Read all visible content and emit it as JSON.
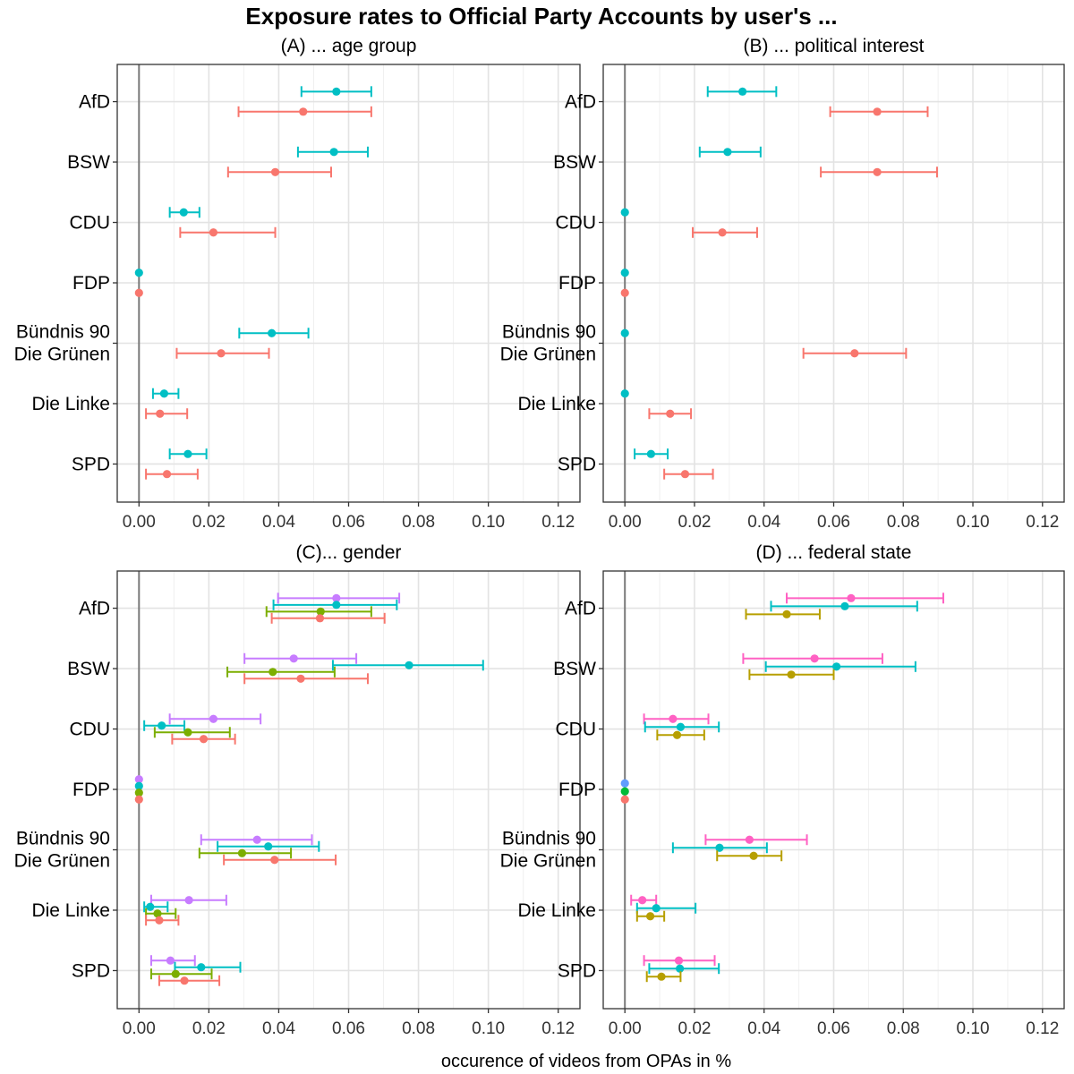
{
  "figure": {
    "title": "Exposure rates to Official Party Accounts by user's ...",
    "xlabel": "occurence of videos from OPAs in %"
  },
  "chart_data": [
    {
      "type": "scatter",
      "panel_title": "(A) ... age group",
      "xlim": [
        0,
        0.12
      ],
      "xticks": [
        "0.00",
        "0.02",
        "0.04",
        "0.06",
        "0.08",
        "0.10",
        "0.12"
      ],
      "categories": [
        "AfD",
        "BSW",
        "CDU",
        "FDP",
        "Bündnis 90\nDie Grünen",
        "Die Linke",
        "SPD"
      ],
      "grid": true,
      "legend": "none",
      "series": [
        {
          "color": "#00BFC4",
          "points": [
            {
              "est": 0.0565,
              "lo": 0.0465,
              "hi": 0.0665
            },
            {
              "est": 0.0558,
              "lo": 0.0455,
              "hi": 0.0655
            },
            {
              "est": 0.0128,
              "lo": 0.0088,
              "hi": 0.0173
            },
            {
              "est": 0.0,
              "lo": null,
              "hi": null
            },
            {
              "est": 0.038,
              "lo": 0.0287,
              "hi": 0.0485
            },
            {
              "est": 0.0072,
              "lo": 0.004,
              "hi": 0.0113
            },
            {
              "est": 0.014,
              "lo": 0.0088,
              "hi": 0.0193
            }
          ]
        },
        {
          "color": "#F8766D",
          "points": [
            {
              "est": 0.047,
              "lo": 0.0285,
              "hi": 0.0665
            },
            {
              "est": 0.039,
              "lo": 0.0255,
              "hi": 0.055
            },
            {
              "est": 0.0213,
              "lo": 0.0118,
              "hi": 0.039
            },
            {
              "est": 0.0,
              "lo": null,
              "hi": null
            },
            {
              "est": 0.0235,
              "lo": 0.0108,
              "hi": 0.0372
            },
            {
              "est": 0.006,
              "lo": 0.002,
              "hi": 0.0138
            },
            {
              "est": 0.008,
              "lo": 0.002,
              "hi": 0.0168
            }
          ]
        }
      ]
    },
    {
      "type": "scatter",
      "panel_title": "(B) ... political interest",
      "xlim": [
        0,
        0.12
      ],
      "xticks": [
        "0.00",
        "0.02",
        "0.04",
        "0.06",
        "0.08",
        "0.10",
        "0.12"
      ],
      "categories": [
        "AfD",
        "BSW",
        "CDU",
        "FDP",
        "Bündnis 90\nDie Grünen",
        "Die Linke",
        "SPD"
      ],
      "grid": true,
      "legend": "none",
      "series": [
        {
          "color": "#00BFC4",
          "points": [
            {
              "est": 0.0338,
              "lo": 0.0238,
              "hi": 0.0435
            },
            {
              "est": 0.0295,
              "lo": 0.0215,
              "hi": 0.039
            },
            {
              "est": 0.0,
              "lo": null,
              "hi": null
            },
            {
              "est": 0.0,
              "lo": null,
              "hi": null
            },
            {
              "est": 0.0,
              "lo": null,
              "hi": null
            },
            {
              "est": 0.0,
              "lo": null,
              "hi": null
            },
            {
              "est": 0.0075,
              "lo": 0.0028,
              "hi": 0.0123
            }
          ]
        },
        {
          "color": "#F8766D",
          "points": [
            {
              "est": 0.0725,
              "lo": 0.059,
              "hi": 0.087
            },
            {
              "est": 0.0725,
              "lo": 0.0563,
              "hi": 0.0897
            },
            {
              "est": 0.028,
              "lo": 0.0195,
              "hi": 0.038
            },
            {
              "est": 0.0,
              "lo": null,
              "hi": null
            },
            {
              "est": 0.066,
              "lo": 0.0513,
              "hi": 0.0808
            },
            {
              "est": 0.013,
              "lo": 0.007,
              "hi": 0.019
            },
            {
              "est": 0.0173,
              "lo": 0.0113,
              "hi": 0.0253
            }
          ]
        }
      ]
    },
    {
      "type": "scatter",
      "panel_title": "(C)... gender",
      "xlim": [
        0,
        0.12
      ],
      "xticks": [
        "0.00",
        "0.02",
        "0.04",
        "0.06",
        "0.08",
        "0.10",
        "0.12"
      ],
      "categories": [
        "AfD",
        "BSW",
        "CDU",
        "FDP",
        "Bündnis 90\nDie Grünen",
        "Die Linke",
        "SPD"
      ],
      "grid": true,
      "legend": "none",
      "series": [
        {
          "color": "#C77CFF",
          "points": [
            {
              "est": 0.0565,
              "lo": 0.0398,
              "hi": 0.0745
            },
            {
              "est": 0.0443,
              "lo": 0.0302,
              "hi": 0.0622
            },
            {
              "est": 0.0213,
              "lo": 0.0088,
              "hi": 0.0348
            },
            {
              "est": 0.0,
              "lo": null,
              "hi": null
            },
            {
              "est": 0.0338,
              "lo": 0.0178,
              "hi": 0.0495
            },
            {
              "est": 0.0143,
              "lo": 0.0035,
              "hi": 0.025
            },
            {
              "est": 0.009,
              "lo": 0.0035,
              "hi": 0.016
            }
          ]
        },
        {
          "color": "#00BFC4",
          "points": [
            {
              "est": 0.0565,
              "lo": 0.0385,
              "hi": 0.0738
            },
            {
              "est": 0.0773,
              "lo": 0.0555,
              "hi": 0.0985
            },
            {
              "est": 0.0065,
              "lo": 0.0015,
              "hi": 0.013
            },
            {
              "est": 0.0,
              "lo": null,
              "hi": null
            },
            {
              "est": 0.037,
              "lo": 0.0225,
              "hi": 0.0515
            },
            {
              "est": 0.0032,
              "lo": 0.0015,
              "hi": 0.0082
            },
            {
              "est": 0.0178,
              "lo": 0.0103,
              "hi": 0.029
            }
          ]
        },
        {
          "color": "#7CAE00",
          "points": [
            {
              "est": 0.052,
              "lo": 0.0365,
              "hi": 0.0665
            },
            {
              "est": 0.0383,
              "lo": 0.0253,
              "hi": 0.056
            },
            {
              "est": 0.014,
              "lo": 0.0045,
              "hi": 0.026
            },
            {
              "est": 0.0,
              "lo": null,
              "hi": null
            },
            {
              "est": 0.0295,
              "lo": 0.0173,
              "hi": 0.0435
            },
            {
              "est": 0.0053,
              "lo": 0.002,
              "hi": 0.0105
            },
            {
              "est": 0.0105,
              "lo": 0.0035,
              "hi": 0.0208
            }
          ]
        },
        {
          "color": "#F8766D",
          "points": [
            {
              "est": 0.0518,
              "lo": 0.038,
              "hi": 0.0703
            },
            {
              "est": 0.0463,
              "lo": 0.0302,
              "hi": 0.0655
            },
            {
              "est": 0.0185,
              "lo": 0.0095,
              "hi": 0.0275
            },
            {
              "est": 0.0,
              "lo": null,
              "hi": null
            },
            {
              "est": 0.0388,
              "lo": 0.0243,
              "hi": 0.0563
            },
            {
              "est": 0.0058,
              "lo": 0.002,
              "hi": 0.0113
            },
            {
              "est": 0.013,
              "lo": 0.0058,
              "hi": 0.023
            }
          ]
        }
      ]
    },
    {
      "type": "scatter",
      "panel_title": "(D) ... federal state",
      "xlim": [
        0,
        0.12
      ],
      "xticks": [
        "0.00",
        "0.02",
        "0.04",
        "0.06",
        "0.08",
        "0.10",
        "0.12"
      ],
      "categories": [
        "AfD",
        "BSW",
        "CDU",
        "FDP",
        "Bündnis 90\nDie Grünen",
        "Die Linke",
        "SPD"
      ],
      "grid": true,
      "legend": "none",
      "series": [
        {
          "color": "#FF61C3",
          "points": [
            {
              "est": 0.065,
              "lo": 0.0465,
              "hi": 0.0915
            },
            {
              "est": 0.0545,
              "lo": 0.034,
              "hi": 0.074
            },
            {
              "est": 0.0138,
              "lo": 0.0055,
              "hi": 0.024
            },
            null,
            {
              "est": 0.0358,
              "lo": 0.0232,
              "hi": 0.0523
            },
            {
              "est": 0.005,
              "lo": 0.0018,
              "hi": 0.009
            },
            {
              "est": 0.0155,
              "lo": 0.0055,
              "hi": 0.0258
            }
          ]
        },
        {
          "color": "#619CFF",
          "points": [
            null,
            null,
            null,
            {
              "est": 0.0,
              "lo": null,
              "hi": null
            },
            null,
            null,
            null
          ]
        },
        {
          "color": "#00BFC4",
          "points": [
            {
              "est": 0.0632,
              "lo": 0.042,
              "hi": 0.084
            },
            {
              "est": 0.0608,
              "lo": 0.0405,
              "hi": 0.0835
            },
            {
              "est": 0.016,
              "lo": 0.0058,
              "hi": 0.027
            },
            null,
            {
              "est": 0.0272,
              "lo": 0.0138,
              "hi": 0.0408
            },
            {
              "est": 0.009,
              "lo": 0.0035,
              "hi": 0.0203
            },
            {
              "est": 0.0158,
              "lo": 0.007,
              "hi": 0.027
            }
          ]
        },
        {
          "color": "#00BA38",
          "points": [
            null,
            null,
            null,
            {
              "est": 0.0,
              "lo": null,
              "hi": null
            },
            null,
            null,
            null
          ]
        },
        {
          "color": "#B79F00",
          "points": [
            {
              "est": 0.0465,
              "lo": 0.0348,
              "hi": 0.056
            },
            {
              "est": 0.0478,
              "lo": 0.0358,
              "hi": 0.06
            },
            {
              "est": 0.015,
              "lo": 0.0093,
              "hi": 0.0228
            },
            null,
            {
              "est": 0.037,
              "lo": 0.0265,
              "hi": 0.045
            },
            {
              "est": 0.0073,
              "lo": 0.0035,
              "hi": 0.0113
            },
            {
              "est": 0.0105,
              "lo": 0.0063,
              "hi": 0.016
            }
          ]
        },
        {
          "color": "#F8766D",
          "points": [
            null,
            null,
            null,
            {
              "est": 0.0,
              "lo": null,
              "hi": null
            },
            null,
            null,
            null
          ]
        }
      ]
    }
  ]
}
